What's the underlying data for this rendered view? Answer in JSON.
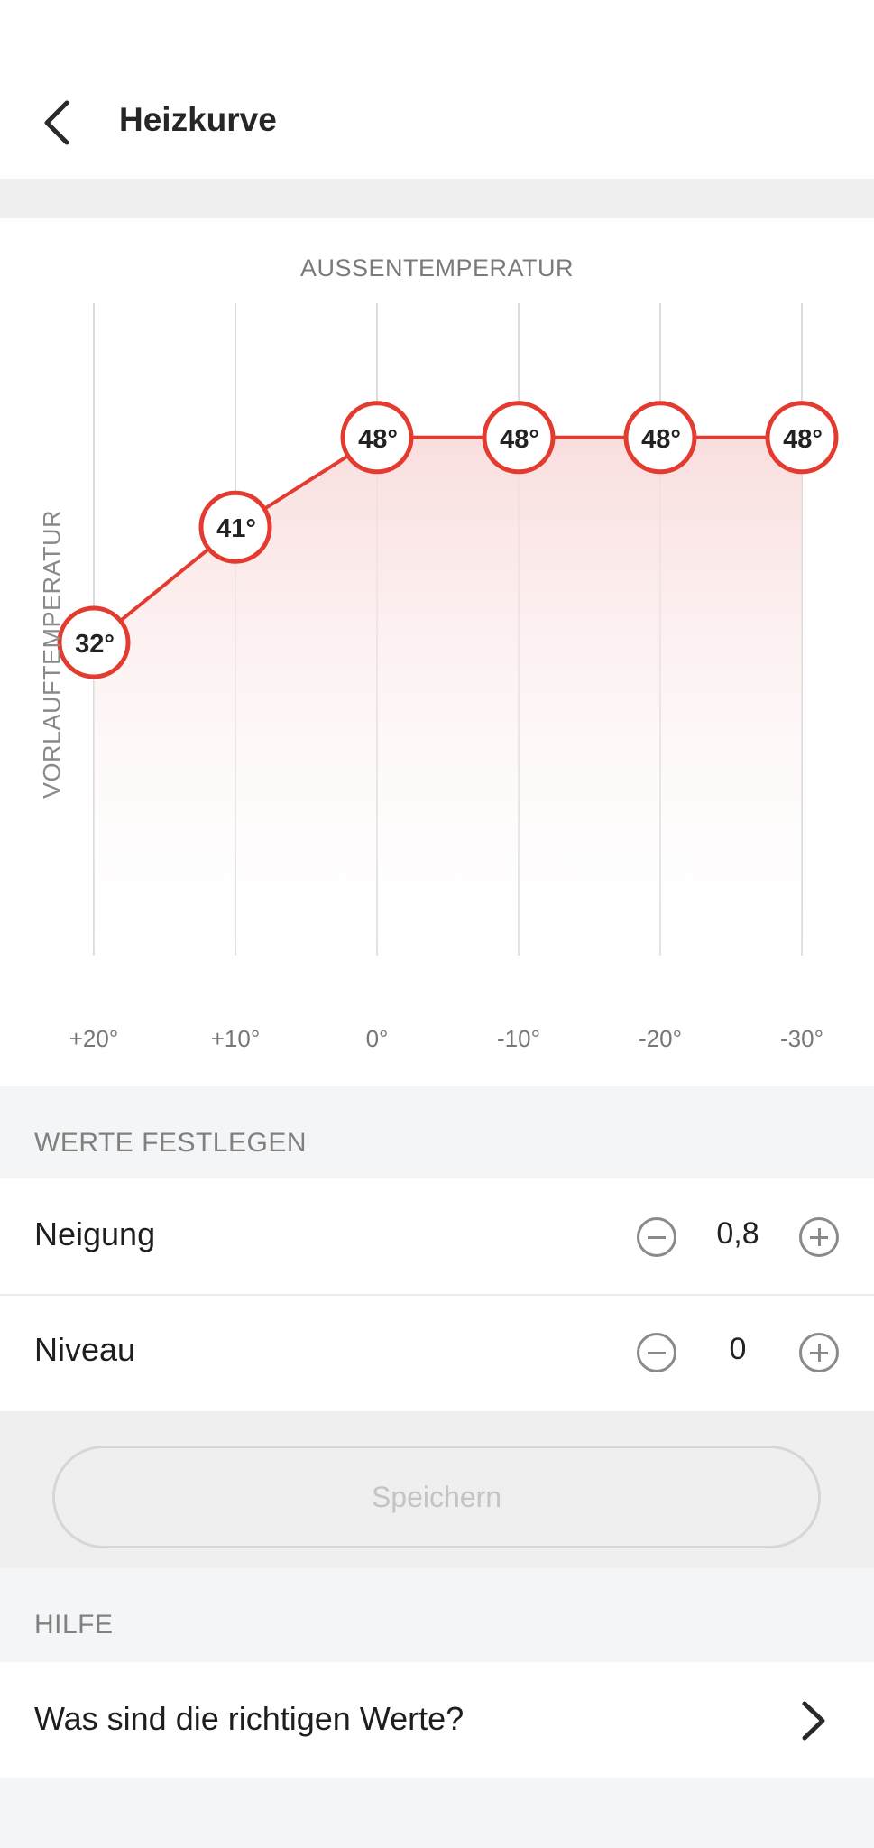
{
  "header": {
    "title": "Heizkurve",
    "back_icon": "chevron-left-icon"
  },
  "chart_data": {
    "type": "line",
    "title": "",
    "xlabel": "AUSSENTEMPERATUR",
    "ylabel": "VORLAUFTEMPERATUR",
    "categories": [
      "+20°",
      "+10°",
      "0°",
      "-10°",
      "-20°",
      "-30°"
    ],
    "x": [
      20,
      10,
      0,
      -10,
      -20,
      -30
    ],
    "values": [
      32,
      41,
      48,
      48,
      48,
      48
    ],
    "point_labels": [
      "32°",
      "41°",
      "48°",
      "48°",
      "48°",
      "48°"
    ],
    "ylim": [
      0,
      100
    ],
    "grid": "vertical",
    "line_color": "#e53a2f",
    "fill_color": "#fbe3e2"
  },
  "section_values": {
    "header": "WERTE FESTLEGEN",
    "rows": [
      {
        "label": "Neigung",
        "value": "0,8",
        "minus_icon": "minus-circle-icon",
        "plus_icon": "plus-circle-icon"
      },
      {
        "label": "Niveau",
        "value": "0",
        "minus_icon": "minus-circle-icon",
        "plus_icon": "plus-circle-icon"
      }
    ]
  },
  "save_button": {
    "label": "Speichern",
    "enabled": false
  },
  "section_help": {
    "header": "HILFE",
    "item_label": "Was sind die richtigen Werte?",
    "item_icon": "chevron-right-icon"
  }
}
